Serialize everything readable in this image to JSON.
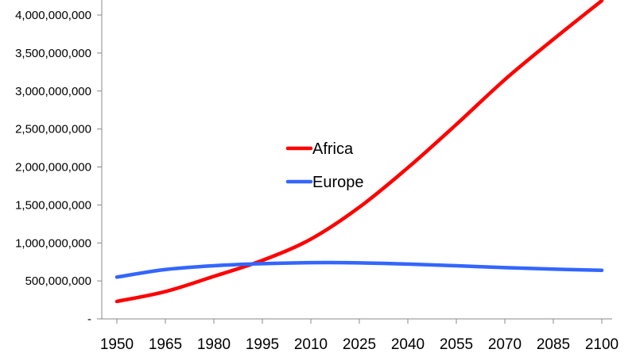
{
  "chart_data": {
    "type": "line",
    "title": "",
    "xlabel": "",
    "ylabel": "",
    "x": [
      1950,
      1965,
      1980,
      1995,
      2010,
      2025,
      2040,
      2055,
      2070,
      2085,
      2100
    ],
    "x_tick_labels": [
      "1950",
      "1965",
      "1980",
      "1995",
      "2010",
      "2025",
      "2040",
      "2055",
      "2070",
      "2085",
      "2100"
    ],
    "y_ticks": [
      0,
      500000000,
      1000000000,
      1500000000,
      2000000000,
      2500000000,
      3000000000,
      3500000000,
      4000000000
    ],
    "y_tick_labels": [
      "-",
      "500,000,000",
      "1,000,000,000",
      "1,500,000,000",
      "2,000,000,000",
      "2,500,000,000",
      "3,000,000,000",
      "3,500,000,000",
      "4,000,000,000"
    ],
    "ylim": [
      0,
      4200000000
    ],
    "xlim": [
      1950,
      2100
    ],
    "grid": false,
    "legend_position": "center",
    "series": [
      {
        "name": "Africa",
        "color": "#ff0000",
        "values": [
          230000000,
          360000000,
          560000000,
          770000000,
          1050000000,
          1470000000,
          1990000000,
          2560000000,
          3150000000,
          3680000000,
          4190000000
        ]
      },
      {
        "name": "Europe",
        "color": "#3366ff",
        "values": [
          550000000,
          650000000,
          700000000,
          727000000,
          740000000,
          738000000,
          722000000,
          700000000,
          675000000,
          655000000,
          640000000
        ]
      }
    ]
  }
}
